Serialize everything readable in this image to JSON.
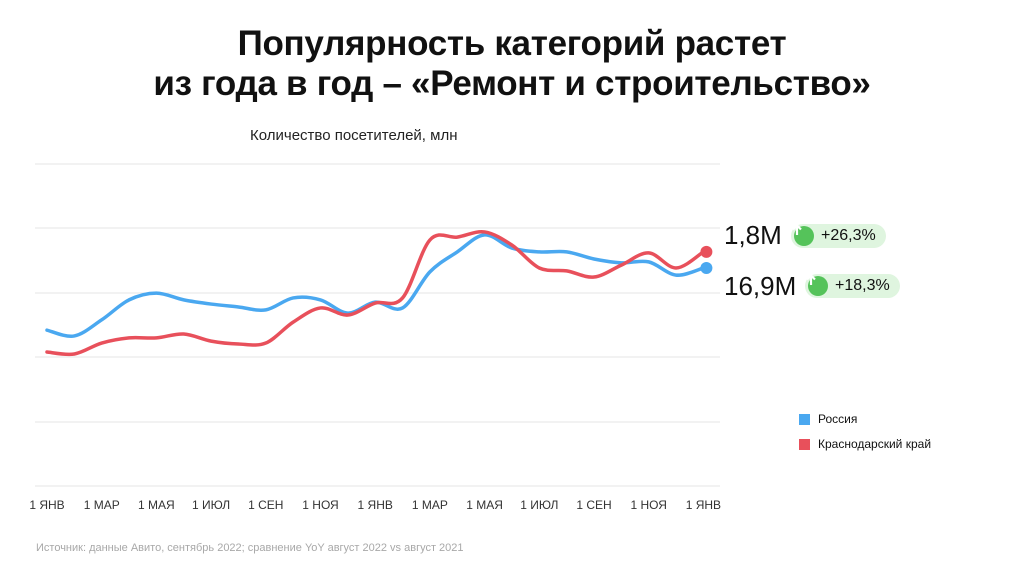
{
  "title_line1": "Популярность категорий растет",
  "title_line2": "из года в год – «Ремонт и строительство»",
  "source": "Источник: данные Авито, сентябрь 2022; сравнение YoY август 2022 vs август 2021",
  "annotations": [
    {
      "value": "1,8M",
      "change": "+26,3%",
      "icon": "arrow-up-circle-icon",
      "series": "Краснодарский край"
    },
    {
      "value": "16,9M",
      "change": "+18,3%",
      "icon": "arrow-up-circle-icon",
      "series": "Россия"
    }
  ],
  "chart_data": {
    "type": "line",
    "title": "Количество посетителей, млн",
    "xlabel": "",
    "ylabel": "",
    "x_ticks": [
      "1 ЯНВ",
      "1 МАР",
      "1 МАЯ",
      "1 ИЮЛ",
      "1 СЕН",
      "1 НОЯ",
      "1 ЯНВ",
      "1 МАР",
      "1 МАЯ",
      "1 ИЮЛ",
      "1 СЕН",
      "1 НОЯ",
      "1 ЯНВ"
    ],
    "x": [
      0,
      1,
      2,
      3,
      4,
      5,
      6,
      7,
      8,
      9,
      10,
      11,
      12,
      13,
      14,
      15,
      16,
      17,
      18,
      19,
      20,
      21,
      22,
      23,
      24
    ],
    "ylim": [
      0,
      100
    ],
    "y_note_unscaled": true,
    "grid": true,
    "legend_position": "right",
    "series": [
      {
        "name": "Россия",
        "color": "#4aa8f0",
        "values": [
          48.4,
          46.6,
          51.6,
          57.8,
          59.9,
          57.8,
          56.5,
          55.6,
          54.7,
          58.4,
          57.8,
          53.7,
          57.1,
          55.3,
          66.5,
          72.7,
          78,
          73.9,
          72.7,
          72.7,
          70.5,
          69.3,
          69.6,
          65.5,
          67.7
        ]
      },
      {
        "name": "Краснодарский край",
        "color": "#e8505b",
        "values": [
          41.6,
          41,
          44.4,
          46,
          46,
          47.2,
          45,
          44.1,
          44.4,
          50.9,
          55.3,
          53.1,
          56.8,
          58.4,
          76.4,
          77.3,
          78.9,
          74.8,
          67.7,
          66.8,
          64.9,
          68.6,
          72.4,
          67.7,
          72.7
        ]
      }
    ]
  }
}
